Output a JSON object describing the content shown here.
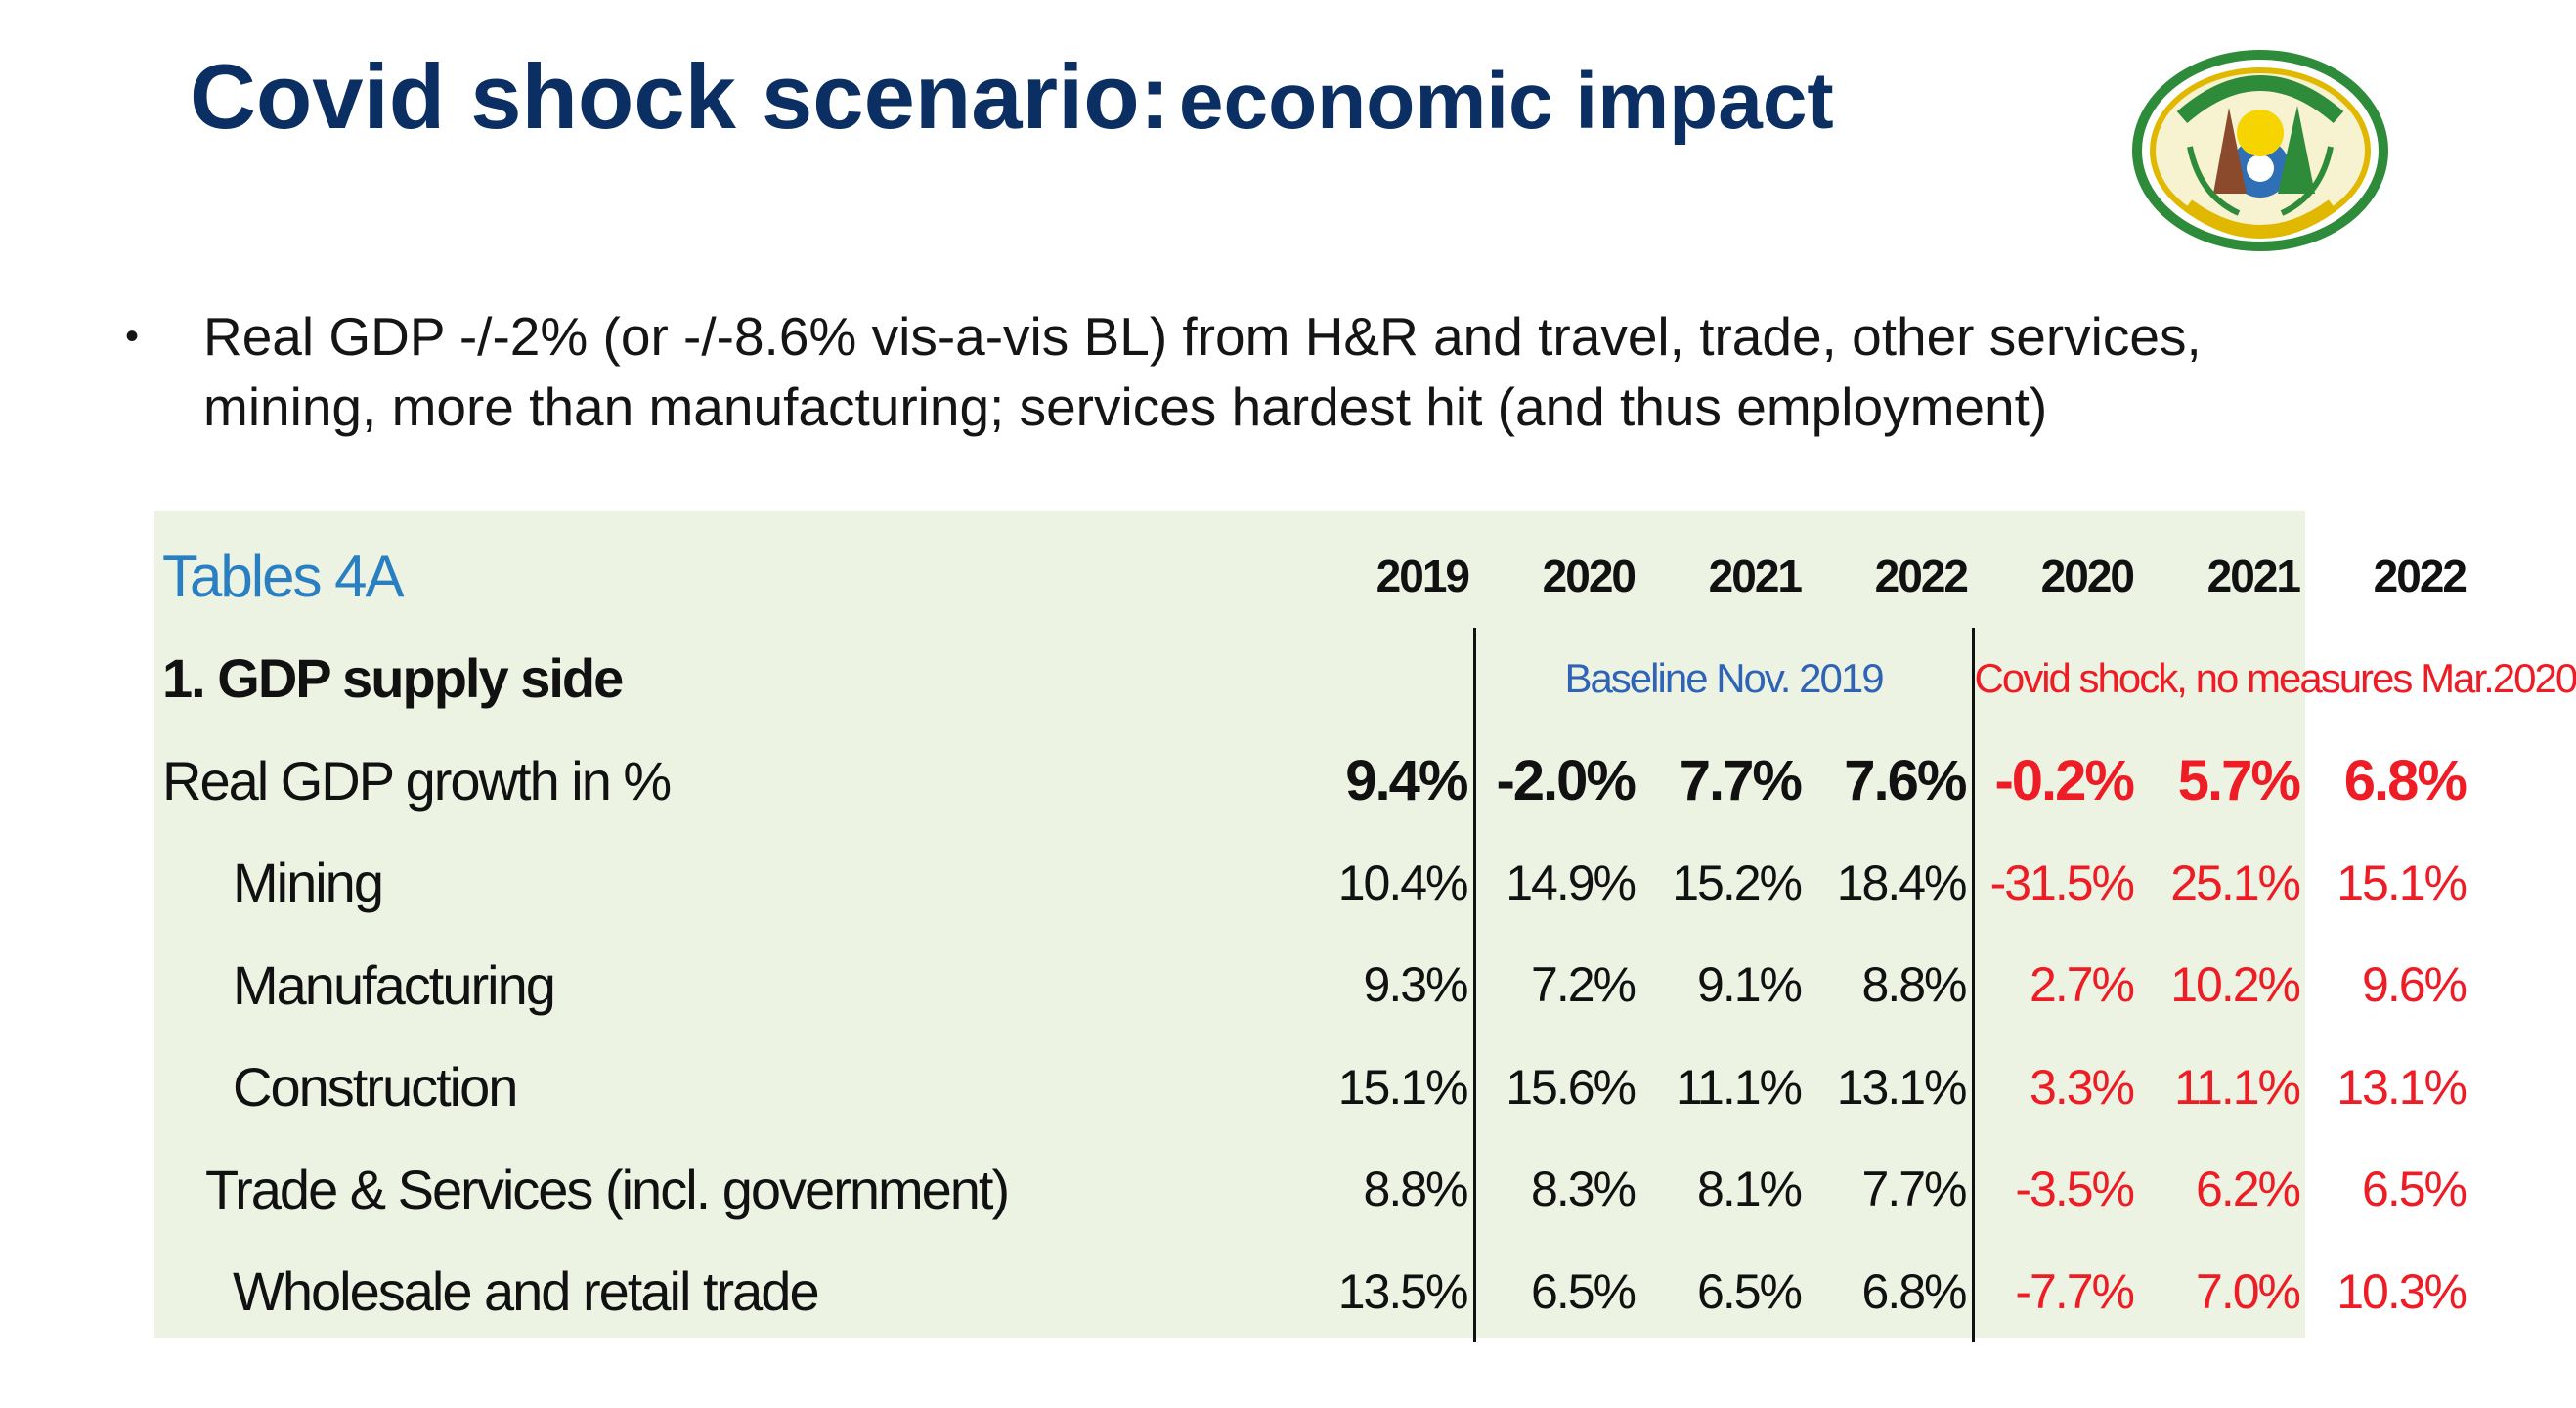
{
  "title": {
    "main": "Covid shock scenario:",
    "sub": "economic impact"
  },
  "logo": {
    "name": "Republic of Rwanda coat of arms",
    "colors": {
      "ring": "#2e8b3a",
      "band": "#e8c100",
      "sun": "#f5d400",
      "wheel": "#2f6fb5"
    }
  },
  "bullet": {
    "line1": "Real GDP -/-2% (or -/-8.6% vis-a-vis BL) from H&R and travel, trade, other services,",
    "line2": "mining, more than manufacturing; services hardest hit (and thus employment)"
  },
  "table": {
    "title": "Tables 4A",
    "years": [
      "2019",
      "2020",
      "2021",
      "2022",
      "2020",
      "2021",
      "2022"
    ],
    "section": "1. GDP supply side",
    "baseline_label": "Baseline Nov. 2019",
    "shock_label": "Covid shock, no measures Mar.2020",
    "rows": [
      {
        "label": "Real GDP growth in %",
        "values": [
          "9.4%",
          "-2.0%",
          "7.7%",
          "7.6%",
          "-0.2%",
          "5.7%",
          "6.8%"
        ]
      },
      {
        "label": "Mining",
        "values": [
          "10.4%",
          "14.9%",
          "15.2%",
          "18.4%",
          "-31.5%",
          "25.1%",
          "15.1%"
        ]
      },
      {
        "label": "Manufacturing",
        "values": [
          "9.3%",
          "7.2%",
          "9.1%",
          "8.8%",
          "2.7%",
          "10.2%",
          "9.6%"
        ]
      },
      {
        "label": "Construction",
        "values": [
          "15.1%",
          "15.6%",
          "11.1%",
          "13.1%",
          "3.3%",
          "11.1%",
          "13.1%"
        ]
      },
      {
        "label": "Trade & Services (incl. government)",
        "values": [
          "8.8%",
          "8.3%",
          "8.1%",
          "7.7%",
          "-3.5%",
          "6.2%",
          "6.5%"
        ]
      },
      {
        "label": "Wholesale and retail trade",
        "values": [
          "13.5%",
          "6.5%",
          "6.5%",
          "6.8%",
          "-7.7%",
          "7.0%",
          "10.3%"
        ]
      }
    ]
  }
}
